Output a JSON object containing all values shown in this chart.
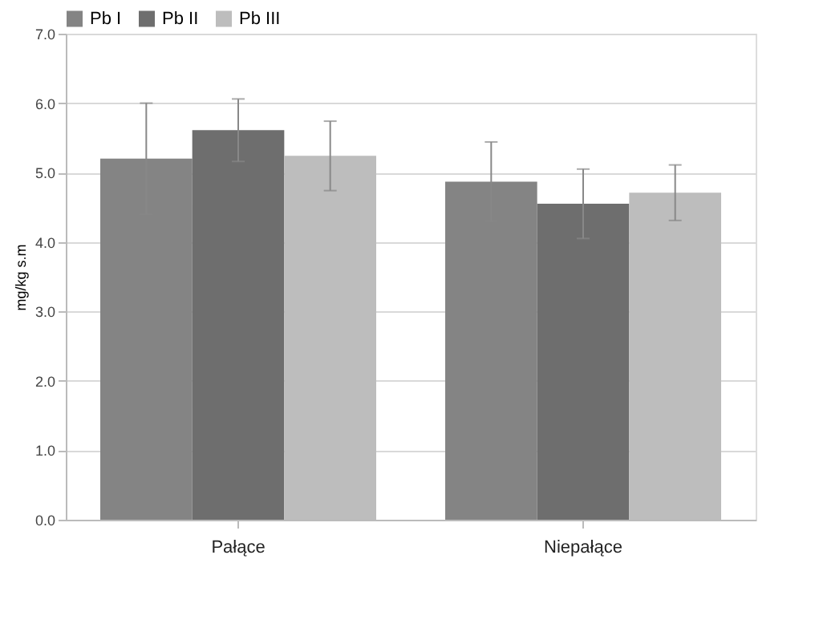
{
  "chart_data": {
    "type": "bar",
    "ylabel": "mg/kg s.m",
    "categories": [
      "Pałące",
      "Niepałące"
    ],
    "series": [
      {
        "name": "Pb I",
        "color": "#848484",
        "values": [
          5.2,
          4.87
        ],
        "errors": [
          0.8,
          0.57
        ]
      },
      {
        "name": "Pb II",
        "color": "#6e6e6e",
        "values": [
          5.61,
          4.55
        ],
        "errors": [
          0.45,
          0.5
        ]
      },
      {
        "name": "Pb III",
        "color": "#bdbdbd",
        "values": [
          5.24,
          4.71
        ],
        "errors": [
          0.5,
          0.4
        ]
      }
    ],
    "ylim": [
      0,
      7
    ],
    "yticks": [
      {
        "value": 0,
        "label": "0.0"
      },
      {
        "value": 1,
        "label": "1.0"
      },
      {
        "value": 2,
        "label": "2.0"
      },
      {
        "value": 3,
        "label": "3.0"
      },
      {
        "value": 4,
        "label": "4.0"
      },
      {
        "value": 5,
        "label": "5.0"
      },
      {
        "value": 6,
        "label": "6.0"
      },
      {
        "value": 7,
        "label": "7.0"
      }
    ],
    "grid": "y",
    "legend": "top left"
  }
}
